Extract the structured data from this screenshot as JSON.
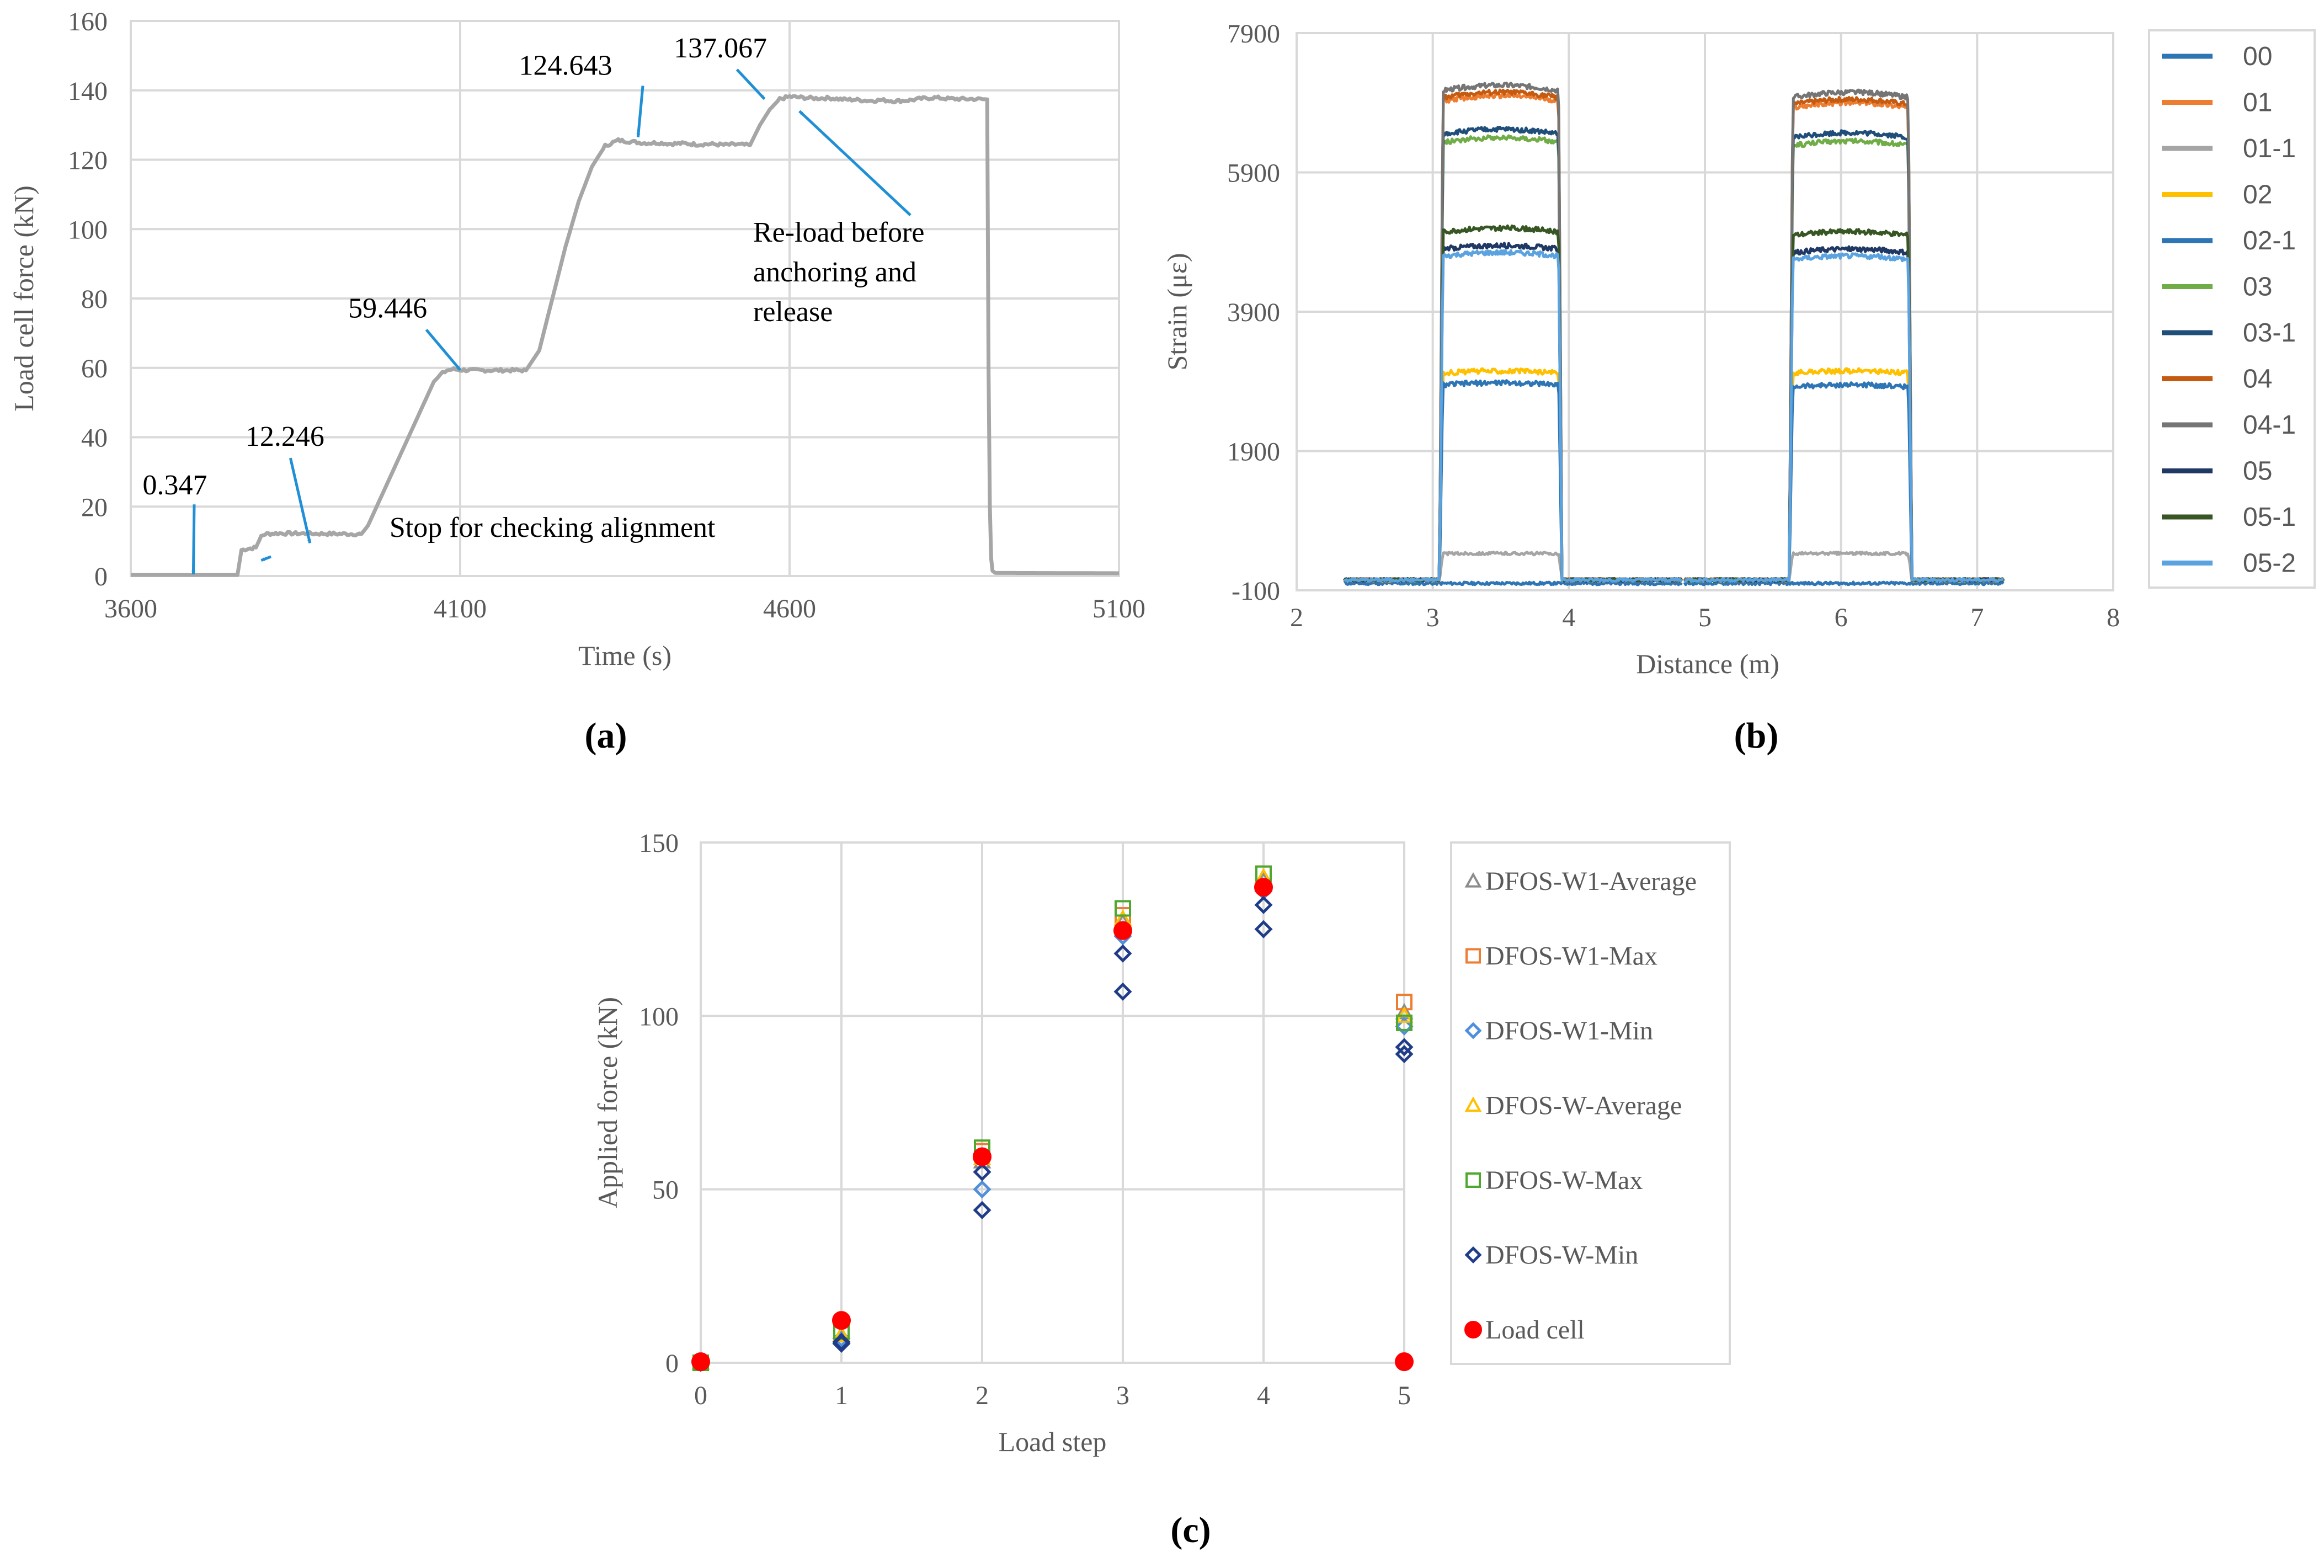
{
  "chart_data": [
    {
      "panel": "a",
      "panel_label": "(a)",
      "type": "line",
      "title": "",
      "xlabel": "Time (s)",
      "ylabel": "Load cell force (kN)",
      "xlim": [
        3600,
        5100
      ],
      "ylim": [
        0,
        160
      ],
      "xticks": [
        3600,
        4100,
        4600,
        5100
      ],
      "yticks": [
        0,
        20,
        40,
        60,
        80,
        100,
        120,
        140,
        160
      ],
      "grid": true,
      "line_color": "#a6a6a6",
      "arrow_color": "#1f8fd6",
      "series": [
        {
          "name": "Load cell force",
          "x": [
            3600,
            3762,
            3768,
            3776,
            3790,
            3798,
            3804,
            3812,
            3820,
            3950,
            3960,
            4060,
            4070,
            4080,
            4090,
            4100,
            4120,
            4200,
            4220,
            4240,
            4260,
            4280,
            4300,
            4320,
            4340,
            4360,
            4380,
            4400,
            4420,
            4440,
            4460,
            4480,
            4500,
            4520,
            4540,
            4555,
            4570,
            4585,
            4600,
            4620,
            4640,
            4660,
            4680,
            4700,
            4720,
            4740,
            4760,
            4780,
            4800,
            4820,
            4840,
            4860,
            4880,
            4896,
            4900,
            4902,
            4904,
            4906,
            4908,
            4912,
            5100
          ],
          "y": [
            0.3,
            0.3,
            7.5,
            7.8,
            8.2,
            11.5,
            12.1,
            12.2,
            12.3,
            12.1,
            14.5,
            56.0,
            58.0,
            59.3,
            59.6,
            59.4,
            59.3,
            59.3,
            65.0,
            80.0,
            95.0,
            108.0,
            118.0,
            124.0,
            125.6,
            125.2,
            124.8,
            124.9,
            124.6,
            124.7,
            124.4,
            124.5,
            124.3,
            124.4,
            124.2,
            130.0,
            134.5,
            137.5,
            138.2,
            137.9,
            137.7,
            137.8,
            137.4,
            137.3,
            137.0,
            137.2,
            136.9,
            137.1,
            137.6,
            137.9,
            137.6,
            137.5,
            137.5,
            137.4,
            137.4,
            60.0,
            20.0,
            5.0,
            1.5,
            0.9,
            0.8
          ]
        }
      ],
      "annotations": [
        {
          "text": "0.347",
          "x": 3667,
          "y": 23.5,
          "arrow_to": [
            3695,
            0.5
          ]
        },
        {
          "text": "12.246",
          "x": 3834,
          "y": 37.5,
          "arrow_to": [
            3872,
            9.5
          ]
        },
        {
          "text": "59.446",
          "x": 3990,
          "y": 74.5,
          "arrow_to": [
            4100,
            59.4
          ]
        },
        {
          "text": "124.643",
          "x": 4260,
          "y": 144.5,
          "arrow_to": [
            4370,
            126.5
          ]
        },
        {
          "text": "137.067",
          "x": 4495,
          "y": 149.5,
          "arrow_to": [
            4562,
            137.5
          ]
        },
        {
          "text": "Stop for checking alignment",
          "x": 4240,
          "y": 11.3,
          "arrow_to": [
            3798,
            4.5
          ]
        }
      ],
      "callout": {
        "lines": [
          "Re-load  before",
          "anchoring    and",
          "release"
        ],
        "arrow_from": [
          4643,
          102
        ],
        "arrow_to": [
          4615,
          134
        ]
      }
    },
    {
      "panel": "b",
      "panel_label": "(b)",
      "type": "line",
      "title": "",
      "xlabel": "Distance (m)",
      "ylabel": "Strain (με)",
      "xlim": [
        2,
        8
      ],
      "ylim": [
        -100,
        7900
      ],
      "xticks": [
        2,
        3,
        4,
        5,
        6,
        7,
        8
      ],
      "yticks": [
        -100,
        1900,
        3900,
        5900,
        7900
      ],
      "ytick_labels": [
        "-100",
        "1900",
        "3900",
        "5900",
        "7900"
      ],
      "grid": true,
      "segments": [
        [
          2.35,
          4.83
        ],
        [
          4.85,
          7.2
        ]
      ],
      "plateaus": [
        {
          "start": 3.05,
          "end": 3.95
        },
        {
          "start": 5.62,
          "end": 6.52
        }
      ],
      "series": [
        {
          "name": "00",
          "color": "#2e75b6",
          "plateau_levels": [
            0,
            0
          ],
          "base": 0
        },
        {
          "name": "01",
          "color": "#ed7d31",
          "plateau_levels": [
            7000,
            6900
          ],
          "base": 50
        },
        {
          "name": "01-1",
          "color": "#a5a5a5",
          "plateau_levels": [
            430,
            430
          ],
          "base": 50
        },
        {
          "name": "02",
          "color": "#ffc000",
          "plateau_levels": [
            3050,
            3050
          ],
          "base": 50
        },
        {
          "name": "02-1",
          "color": "#2e75b6",
          "plateau_levels": [
            2880,
            2850
          ],
          "base": 50
        },
        {
          "name": "03",
          "color": "#70ad47",
          "plateau_levels": [
            6400,
            6350
          ],
          "base": 50
        },
        {
          "name": "03-1",
          "color": "#1f4e79",
          "plateau_levels": [
            6520,
            6470
          ],
          "base": 50
        },
        {
          "name": "04",
          "color": "#c55a11",
          "plateau_levels": [
            7050,
            6950
          ],
          "base": 50
        },
        {
          "name": "04-1",
          "color": "#757575",
          "plateau_levels": [
            7150,
            7050
          ],
          "base": 50
        },
        {
          "name": "05",
          "color": "#203864",
          "plateau_levels": [
            4850,
            4800
          ],
          "base": 50
        },
        {
          "name": "05-1",
          "color": "#375623",
          "plateau_levels": [
            5100,
            5050
          ],
          "base": 50
        },
        {
          "name": "05-2",
          "color": "#5ba3e0",
          "plateau_levels": [
            4750,
            4700
          ],
          "base": 50
        }
      ],
      "legend_position": "right"
    },
    {
      "panel": "c",
      "panel_label": "(c)",
      "type": "scatter",
      "title": "",
      "xlabel": "Load step",
      "ylabel": "Applied force (kN)",
      "xlim": [
        0,
        5
      ],
      "ylim": [
        0,
        150
      ],
      "xticks": [
        0,
        1,
        2,
        3,
        4,
        5
      ],
      "yticks": [
        0,
        50,
        100,
        150
      ],
      "grid": true,
      "legend_position": "right",
      "series": [
        {
          "name": "DFOS-W1-Average",
          "marker": "triangle",
          "color": "#8c8c8c",
          "x": [
            0,
            1,
            2,
            3,
            4,
            5
          ],
          "y": [
            0,
            8,
            58,
            127,
            139,
            101
          ]
        },
        {
          "name": "DFOS-W1-Max",
          "marker": "square",
          "color": "#ed7d31",
          "x": [
            0,
            1,
            2,
            3,
            4,
            5
          ],
          "y": [
            0,
            9,
            61,
            129,
            141,
            104
          ]
        },
        {
          "name": "DFOS-W1-Min",
          "marker": "diamond",
          "color": "#4f8fdc",
          "x": [
            0,
            1,
            2,
            3,
            4,
            5
          ],
          "y": [
            0,
            7,
            50,
            123,
            136,
            97
          ]
        },
        {
          "name": "DFOS-W-Average",
          "marker": "triangle",
          "color": "#ffc000",
          "x": [
            0,
            1,
            2,
            3,
            4,
            5
          ],
          "y": [
            0,
            8,
            59,
            128,
            140,
            100
          ]
        },
        {
          "name": "DFOS-W-Max",
          "marker": "square",
          "color": "#4ea72e",
          "x": [
            0,
            1,
            2,
            3,
            4,
            5
          ],
          "y": [
            0,
            9,
            62,
            131,
            141,
            98
          ]
        },
        {
          "name": "DFOS-W-Min",
          "marker": "diamond",
          "color": "#1f3c88",
          "x": [
            0,
            1,
            1,
            2,
            2,
            3,
            3,
            4,
            4,
            5,
            5
          ],
          "y": [
            0,
            6,
            5.5,
            44,
            55,
            107,
            118,
            125,
            132,
            89,
            91
          ]
        },
        {
          "name": "Load cell",
          "marker": "circle",
          "color": "#ff0000",
          "x": [
            0,
            1,
            2,
            3,
            4,
            5
          ],
          "y": [
            0.3,
            12.2,
            59.4,
            124.6,
            137.1,
            0.3
          ]
        }
      ]
    }
  ]
}
